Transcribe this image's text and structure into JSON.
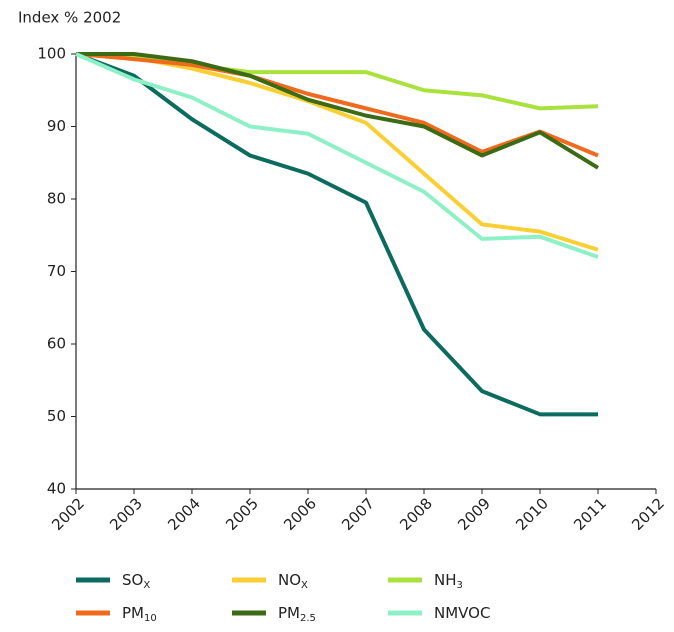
{
  "chart_data": {
    "type": "line",
    "ylabel": "Index % 2002",
    "x": [
      2002,
      2003,
      2004,
      2005,
      2006,
      2007,
      2008,
      2009,
      2010,
      2011
    ],
    "xlim": [
      2002,
      2012
    ],
    "xticks": [
      2002,
      2003,
      2004,
      2005,
      2006,
      2007,
      2008,
      2009,
      2010,
      2011,
      2012
    ],
    "ylim": [
      40,
      100
    ],
    "yticks": [
      40,
      50,
      60,
      70,
      80,
      90,
      100
    ],
    "grid": false,
    "series": [
      {
        "name": "SO",
        "name_sub": "X",
        "color": "#0b6b5f",
        "values": [
          100,
          97,
          91,
          86,
          83.5,
          79.5,
          62,
          53.5,
          50.3,
          50.3
        ]
      },
      {
        "name": "NO",
        "name_sub": "X",
        "color": "#f9cf33",
        "values": [
          100,
          99.5,
          98,
          96,
          93.5,
          90.5,
          83.5,
          76.5,
          75.5,
          73
        ]
      },
      {
        "name": "NH",
        "name_sub": "3",
        "color": "#a9e23d",
        "values": [
          100,
          99.5,
          98.5,
          97.5,
          97.5,
          97.5,
          95,
          94.3,
          92.5,
          92.8
        ]
      },
      {
        "name": "PM",
        "name_sub": "10",
        "color": "#f06a1e",
        "values": [
          100,
          99.3,
          98.5,
          97,
          94.5,
          92.5,
          90.5,
          86.5,
          89.3,
          86
        ]
      },
      {
        "name": "PM",
        "name_sub": "2.5",
        "color": "#3b6b14",
        "values": [
          100,
          100,
          99,
          97,
          93.7,
          91.5,
          90,
          86,
          89.2,
          84.3
        ]
      },
      {
        "name": "NMVOC",
        "color": "#8ef0c6",
        "values": [
          100,
          96.5,
          94,
          90,
          89,
          85,
          81,
          74.5,
          74.8,
          72
        ]
      }
    ]
  }
}
